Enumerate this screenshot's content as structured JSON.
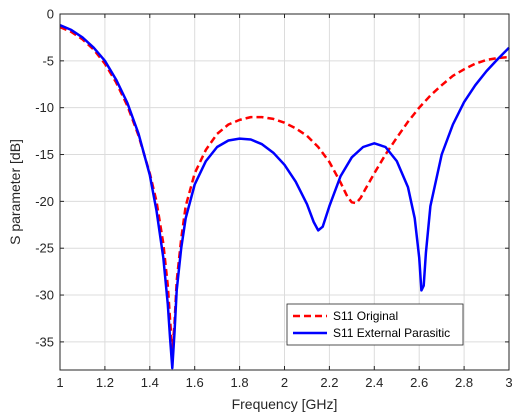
{
  "chart_data": {
    "type": "line",
    "xlabel": "Frequency [GHz]",
    "ylabel": "S parameter [dB]",
    "xlim": [
      1,
      3
    ],
    "ylim": [
      -38,
      0
    ],
    "xticks": [
      1,
      1.2,
      1.4,
      1.6,
      1.8,
      2,
      2.2,
      2.4,
      2.6,
      2.8,
      3
    ],
    "xtick_labels": [
      "1",
      "1.2",
      "1.4",
      "1.6",
      "1.8",
      "2",
      "2.2",
      "2.4",
      "2.6",
      "2.8",
      "3"
    ],
    "yticks": [
      0,
      -5,
      -10,
      -15,
      -20,
      -25,
      -30,
      -35
    ],
    "ytick_labels": [
      "0",
      "-5",
      "-10",
      "-15",
      "-20",
      "-25",
      "-30",
      "-35"
    ],
    "grid": true,
    "legend_position": "bottom-right",
    "series": [
      {
        "name": "S11 Original",
        "color": "#ff0000",
        "line_style": "dashed",
        "points": [
          [
            1.0,
            -1.4
          ],
          [
            1.05,
            -1.9
          ],
          [
            1.1,
            -2.7
          ],
          [
            1.15,
            -3.8
          ],
          [
            1.2,
            -5.3
          ],
          [
            1.25,
            -7.3
          ],
          [
            1.3,
            -9.8
          ],
          [
            1.35,
            -13.0
          ],
          [
            1.4,
            -17.0
          ],
          [
            1.43,
            -20.0
          ],
          [
            1.46,
            -24.5
          ],
          [
            1.48,
            -29.0
          ],
          [
            1.49,
            -32.5
          ],
          [
            1.5,
            -36.0
          ],
          [
            1.51,
            -33.0
          ],
          [
            1.52,
            -28.5
          ],
          [
            1.54,
            -24.0
          ],
          [
            1.56,
            -20.5
          ],
          [
            1.6,
            -17.0
          ],
          [
            1.65,
            -14.5
          ],
          [
            1.7,
            -12.8
          ],
          [
            1.75,
            -11.8
          ],
          [
            1.8,
            -11.3
          ],
          [
            1.85,
            -11.0
          ],
          [
            1.9,
            -11.0
          ],
          [
            1.95,
            -11.2
          ],
          [
            2.0,
            -11.6
          ],
          [
            2.05,
            -12.2
          ],
          [
            2.1,
            -13.0
          ],
          [
            2.15,
            -14.2
          ],
          [
            2.2,
            -15.8
          ],
          [
            2.25,
            -18.0
          ],
          [
            2.28,
            -19.5
          ],
          [
            2.3,
            -20.1
          ],
          [
            2.32,
            -20.2
          ],
          [
            2.34,
            -19.6
          ],
          [
            2.36,
            -18.7
          ],
          [
            2.4,
            -17.0
          ],
          [
            2.45,
            -15.0
          ],
          [
            2.5,
            -13.2
          ],
          [
            2.55,
            -11.5
          ],
          [
            2.6,
            -10.0
          ],
          [
            2.65,
            -8.7
          ],
          [
            2.7,
            -7.6
          ],
          [
            2.75,
            -6.6
          ],
          [
            2.8,
            -5.9
          ],
          [
            2.85,
            -5.3
          ],
          [
            2.9,
            -4.9
          ],
          [
            2.95,
            -4.7
          ],
          [
            3.0,
            -4.6
          ]
        ]
      },
      {
        "name": "S11 External Parasitic",
        "color": "#0000ff",
        "line_style": "solid",
        "points": [
          [
            1.0,
            -1.2
          ],
          [
            1.05,
            -1.7
          ],
          [
            1.1,
            -2.5
          ],
          [
            1.15,
            -3.6
          ],
          [
            1.2,
            -5.0
          ],
          [
            1.25,
            -7.0
          ],
          [
            1.3,
            -9.5
          ],
          [
            1.35,
            -12.8
          ],
          [
            1.4,
            -17.2
          ],
          [
            1.43,
            -21.0
          ],
          [
            1.46,
            -26.0
          ],
          [
            1.48,
            -31.0
          ],
          [
            1.49,
            -34.5
          ],
          [
            1.5,
            -37.8
          ],
          [
            1.51,
            -34.0
          ],
          [
            1.52,
            -29.5
          ],
          [
            1.54,
            -25.0
          ],
          [
            1.56,
            -21.8
          ],
          [
            1.6,
            -18.2
          ],
          [
            1.65,
            -15.7
          ],
          [
            1.7,
            -14.2
          ],
          [
            1.75,
            -13.5
          ],
          [
            1.8,
            -13.3
          ],
          [
            1.85,
            -13.4
          ],
          [
            1.9,
            -13.9
          ],
          [
            1.95,
            -14.8
          ],
          [
            2.0,
            -16.1
          ],
          [
            2.05,
            -17.9
          ],
          [
            2.1,
            -20.3
          ],
          [
            2.13,
            -22.2
          ],
          [
            2.15,
            -23.1
          ],
          [
            2.17,
            -22.7
          ],
          [
            2.2,
            -20.5
          ],
          [
            2.25,
            -17.3
          ],
          [
            2.3,
            -15.3
          ],
          [
            2.35,
            -14.2
          ],
          [
            2.4,
            -13.8
          ],
          [
            2.45,
            -14.2
          ],
          [
            2.5,
            -15.7
          ],
          [
            2.55,
            -18.5
          ],
          [
            2.58,
            -21.8
          ],
          [
            2.6,
            -26.0
          ],
          [
            2.61,
            -29.5
          ],
          [
            2.62,
            -29.0
          ],
          [
            2.63,
            -25.5
          ],
          [
            2.65,
            -20.5
          ],
          [
            2.7,
            -15.0
          ],
          [
            2.75,
            -11.8
          ],
          [
            2.8,
            -9.4
          ],
          [
            2.85,
            -7.6
          ],
          [
            2.9,
            -6.1
          ],
          [
            2.95,
            -4.8
          ],
          [
            3.0,
            -3.6
          ]
        ]
      }
    ]
  }
}
